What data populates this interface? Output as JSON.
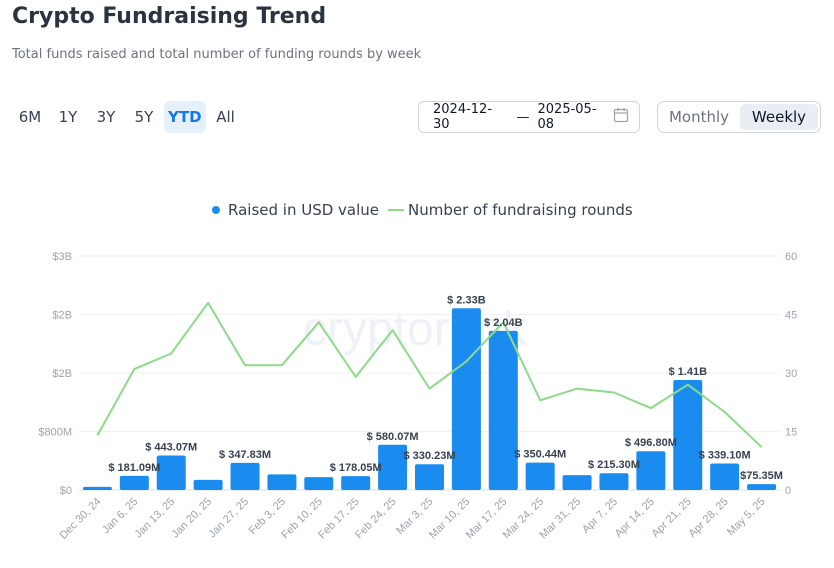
{
  "header": {
    "title": "Crypto Fundraising Trend",
    "subtitle": "Total funds raised and total number of funding rounds by week"
  },
  "ranges": [
    {
      "label": "6M",
      "active": false
    },
    {
      "label": "1Y",
      "active": false
    },
    {
      "label": "3Y",
      "active": false
    },
    {
      "label": "5Y",
      "active": false
    },
    {
      "label": "YTD",
      "active": true
    },
    {
      "label": "All",
      "active": false
    }
  ],
  "date_range": {
    "start": "2024-12-30",
    "separator": "—",
    "end": "2025-05-08",
    "icon": "calendar-icon"
  },
  "period": [
    {
      "label": "Monthly",
      "active": false
    },
    {
      "label": "Weekly",
      "active": true
    }
  ],
  "watermark": "cryptorank",
  "colors": {
    "bar": "#1a8cf0",
    "line": "#8ed98a",
    "grid": "#eef0f3",
    "accent": "#1677e5"
  },
  "chart_data": {
    "type": "bar",
    "categories": [
      "Dec 30, 24",
      "Jan 6, 25",
      "Jan 13, 25",
      "Jan 20, 25",
      "Jan 27, 25",
      "Feb 3, 25",
      "Feb 10, 25",
      "Feb 17, 25",
      "Feb 24, 25",
      "Mar 3, 25",
      "Mar 10, 25",
      "Mar 17, 25",
      "Mar 24, 25",
      "Mar 31, 25",
      "Apr 7, 25",
      "Apr 14, 25",
      "Apr 21, 25",
      "Apr 28, 25",
      "May 5, 25"
    ],
    "series": [
      {
        "name": "Raised in USD value",
        "type": "bar",
        "axis": "left",
        "values": [
          40000000,
          181090000,
          443070000,
          130000000,
          347830000,
          200000000,
          165000000,
          178050000,
          580070000,
          330230000,
          2330000000,
          2040000000,
          350440000,
          190000000,
          215300000,
          496800000,
          1410000000,
          339100000,
          75350000
        ],
        "labels": [
          "",
          "$ 181.09M",
          "$ 443.07M",
          "",
          "$ 347.83M",
          "",
          "",
          "$ 178.05M",
          "$ 580.07M",
          "$ 330.23M",
          "$ 2.33B",
          "$ 2.04B",
          "$ 350.44M",
          "",
          "$ 215.30M",
          "$ 496.80M",
          "$ 1.41B",
          "$ 339.10M",
          "$75.35M"
        ]
      },
      {
        "name": "Number of fundraising rounds",
        "type": "line",
        "axis": "right",
        "values": [
          14,
          31,
          35,
          48,
          32,
          32,
          43,
          29,
          41,
          26,
          33,
          43,
          23,
          26,
          25,
          21,
          27,
          20,
          11
        ]
      }
    ],
    "y_left": {
      "ticks": [
        "$0",
        "$800M",
        "$2B",
        "$2B",
        "$3B"
      ],
      "max": 3000000000
    },
    "y_right": {
      "ticks": [
        "0",
        "15",
        "30",
        "45",
        "60"
      ],
      "max": 60
    },
    "legend_position": "top-center",
    "grid": true
  }
}
